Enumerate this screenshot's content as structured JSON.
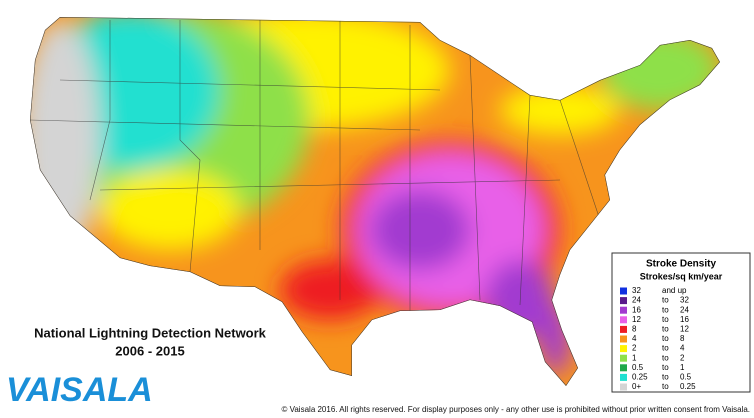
{
  "brand": "VAISALA",
  "title": "National Lightning Detection Network",
  "subtitle": "2006 - 2015",
  "legend": {
    "title": "Stroke Density",
    "subtitle": "Strokes/sq km/year",
    "items": [
      {
        "from": "32",
        "joiner": "and up",
        "color": "#1030e0"
      },
      {
        "from": "24",
        "joiner": "to",
        "to": "32",
        "color": "#5a1a8c"
      },
      {
        "from": "16",
        "joiner": "to",
        "to": "24",
        "color": "#a23ad0"
      },
      {
        "from": "12",
        "joiner": "to",
        "to": "16",
        "color": "#e860e8"
      },
      {
        "from": "8",
        "joiner": "to",
        "to": "12",
        "color": "#ee1c24"
      },
      {
        "from": "4",
        "joiner": "to",
        "to": "8",
        "color": "#f7941d"
      },
      {
        "from": "2",
        "joiner": "to",
        "to": "4",
        "color": "#fff200"
      },
      {
        "from": "1",
        "joiner": "to",
        "to": "2",
        "color": "#8ee04a"
      },
      {
        "from": "0.5",
        "joiner": "to",
        "to": "1",
        "color": "#1fa84a"
      },
      {
        "from": "0.25",
        "joiner": "to",
        "to": "0.5",
        "color": "#20e0d0"
      },
      {
        "from": "0+",
        "joiner": "to",
        "to": "0.25",
        "color": "#d4d4d4"
      }
    ]
  },
  "copyright": "© Vaisala 2016. All rights reserved. For display purposes only - any other use is prohibited without prior written consent from Vaisala."
}
